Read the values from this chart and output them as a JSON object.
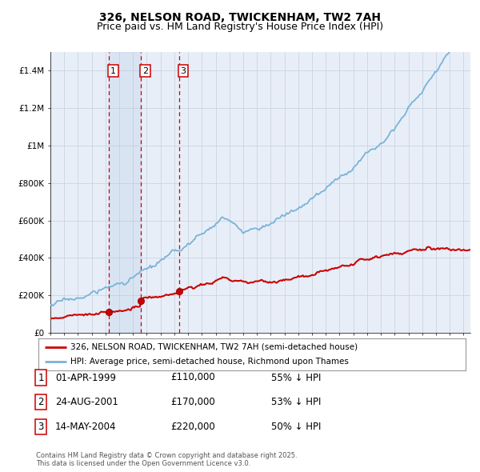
{
  "title": "326, NELSON ROAD, TWICKENHAM, TW2 7AH",
  "subtitle": "Price paid vs. HM Land Registry's House Price Index (HPI)",
  "ylim": [
    0,
    1500000
  ],
  "yticks": [
    0,
    200000,
    400000,
    600000,
    800000,
    1000000,
    1200000,
    1400000
  ],
  "ytick_labels": [
    "£0",
    "£200K",
    "£400K",
    "£600K",
    "£800K",
    "£1M",
    "£1.2M",
    "£1.4M"
  ],
  "hpi_color": "#7ab3d8",
  "price_color": "#cc0000",
  "vline_color": "#cc0000",
  "grid_color": "#c8d4e0",
  "background_color": "#e8eef8",
  "sale_labels": [
    "1",
    "2",
    "3"
  ],
  "sale_info": [
    {
      "label": "1",
      "date": "01-APR-1999",
      "price": "£110,000",
      "change": "55% ↓ HPI"
    },
    {
      "label": "2",
      "date": "24-AUG-2001",
      "price": "£170,000",
      "change": "53% ↓ HPI"
    },
    {
      "label": "3",
      "date": "14-MAY-2004",
      "price": "£220,000",
      "change": "50% ↓ HPI"
    }
  ],
  "legend1": "326, NELSON ROAD, TWICKENHAM, TW2 7AH (semi-detached house)",
  "legend2": "HPI: Average price, semi-detached house, Richmond upon Thames",
  "footnote": "Contains HM Land Registry data © Crown copyright and database right 2025.\nThis data is licensed under the Open Government Licence v3.0.",
  "title_fontsize": 10,
  "subtitle_fontsize": 9,
  "tick_fontsize": 7.5
}
